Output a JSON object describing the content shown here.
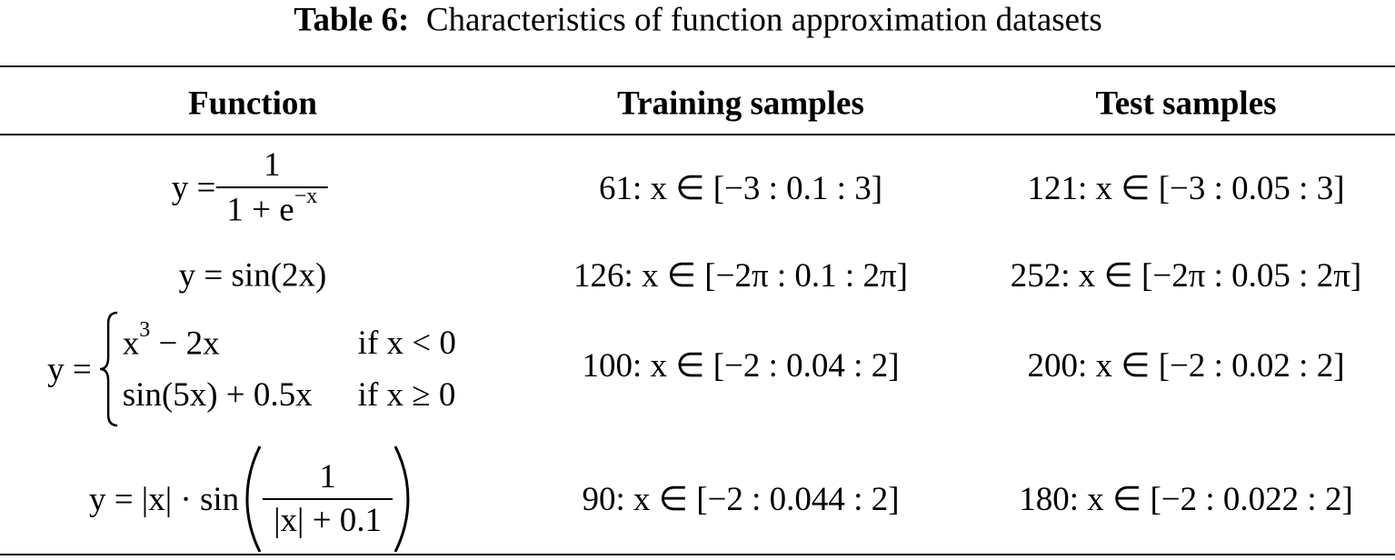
{
  "caption": {
    "label": "Table 6:",
    "text": "Characteristics of function approximation datasets"
  },
  "table": {
    "headers": [
      "Function",
      "Training samples",
      "Test samples"
    ],
    "rows": [
      {
        "function": {
          "lhs": "y =",
          "numerator": "1",
          "denominator": "1 + e",
          "exponent": "−x"
        },
        "training": "61: x ∈ [−3 : 0.1 : 3]",
        "test": "121: x ∈ [−3 : 0.05 : 3]"
      },
      {
        "function": {
          "lhs": "y = sin(2x)"
        },
        "training": "126: x ∈ [−2π : 0.1 : 2π]",
        "test": "252: x ∈ [−2π : 0.05 : 2π]"
      },
      {
        "function": {
          "lhs": "y =",
          "cases": [
            {
              "base": "x",
              "exponent": "3",
              "rest": "− 2x",
              "condition": "if x < 0"
            },
            {
              "base": "sin(5x) + 0.5x",
              "condition": "if x ≥ 0"
            }
          ]
        },
        "training": "100: x ∈ [−2 : 0.04 : 2]",
        "test": "200: x ∈ [−2 : 0.02 : 2]"
      },
      {
        "function": {
          "lhs": "y = |x| · sin",
          "numerator": "1",
          "denominator": "|x| + 0.1"
        },
        "training": "90: x ∈ [−2 : 0.044 : 2]",
        "test": "180: x ∈ [−2 : 0.022 : 2]"
      }
    ]
  }
}
